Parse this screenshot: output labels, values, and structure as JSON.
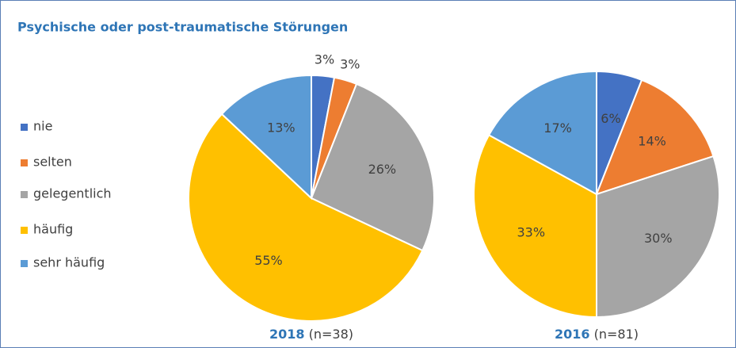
{
  "title": "Psychische oder post-traumatische Störungen",
  "categories": [
    "nie",
    "selten",
    "gelegentlich",
    "häufig",
    "sehr häufig"
  ],
  "colors": [
    "#4472c4",
    "#ed7d31",
    "#a5a5a5",
    "#ffc000",
    "#5b9bd5"
  ],
  "chart_data": [
    {
      "type": "pie",
      "year": "2018",
      "sample": "(n=38)",
      "values": [
        3,
        3,
        26,
        55,
        13
      ],
      "value_labels": [
        "3%",
        "3%",
        "26%",
        "55%",
        "13%"
      ]
    },
    {
      "type": "pie",
      "year": "2016",
      "sample": "(n=81)",
      "values": [
        6,
        14,
        30,
        33,
        17
      ],
      "value_labels": [
        "6%",
        "14%",
        "30%",
        "33%",
        "17%"
      ]
    }
  ]
}
